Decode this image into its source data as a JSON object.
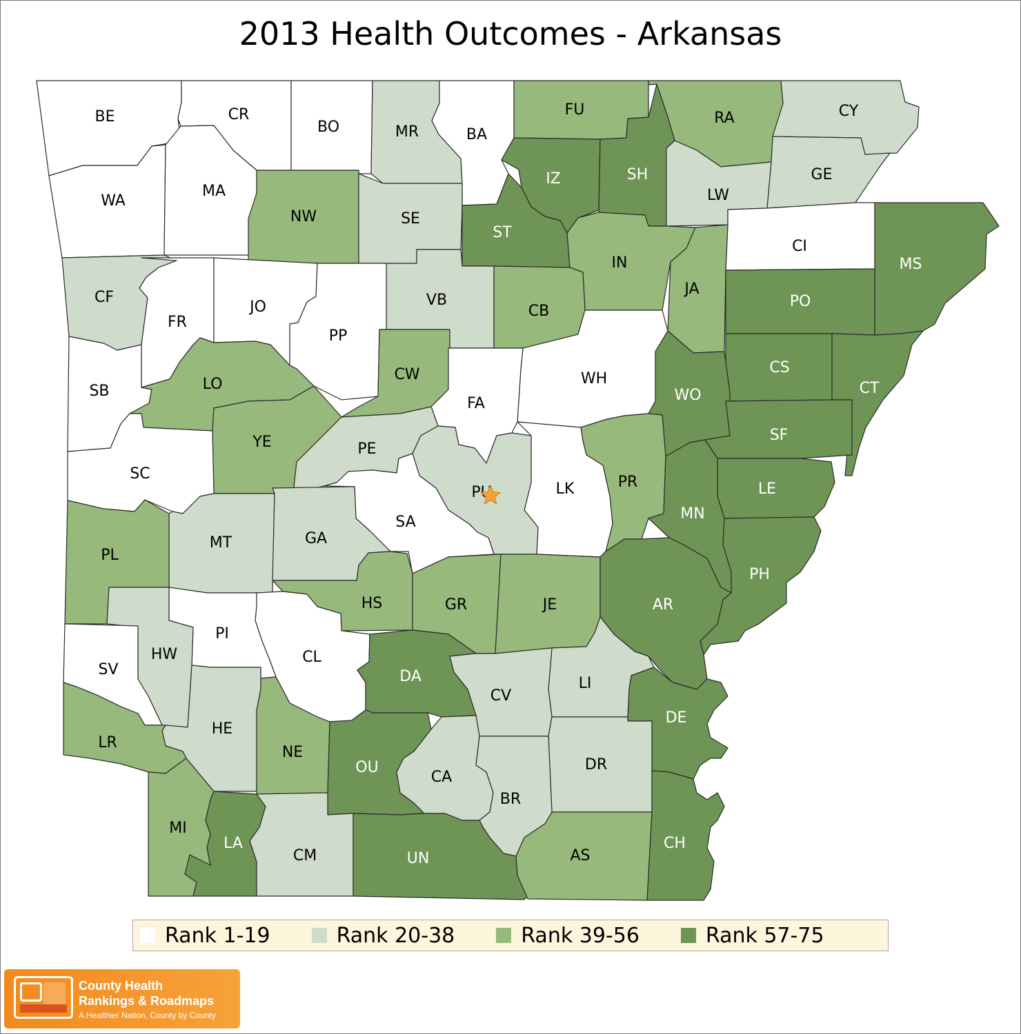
{
  "title": "2013 Health Outcomes - Arkansas",
  "colors": {
    "rank_1_19": "#ffffff",
    "rank_20_38": "#d0dccb",
    "rank_39_56": "#97b97b",
    "rank_57_75": "#6e9555",
    "star": "#f5a23a"
  },
  "legend": [
    {
      "label": "Rank 1-19",
      "color": "#ffffff"
    },
    {
      "label": "Rank 20-38",
      "color": "#d0dccb"
    },
    {
      "label": "Rank 39-56",
      "color": "#97b97b"
    },
    {
      "label": "Rank 57-75",
      "color": "#6e9555"
    }
  ],
  "counties": [
    {
      "code": "BE",
      "tier": 1
    },
    {
      "code": "CR",
      "tier": 1
    },
    {
      "code": "BO",
      "tier": 1
    },
    {
      "code": "MR",
      "tier": 2
    },
    {
      "code": "BA",
      "tier": 1
    },
    {
      "code": "FU",
      "tier": 3
    },
    {
      "code": "RA",
      "tier": 3
    },
    {
      "code": "CY",
      "tier": 2
    },
    {
      "code": "WA",
      "tier": 1
    },
    {
      "code": "MA",
      "tier": 1
    },
    {
      "code": "NW",
      "tier": 3
    },
    {
      "code": "SE",
      "tier": 2
    },
    {
      "code": "IZ",
      "tier": 4
    },
    {
      "code": "SH",
      "tier": 4
    },
    {
      "code": "LW",
      "tier": 2
    },
    {
      "code": "GE",
      "tier": 2
    },
    {
      "code": "ST",
      "tier": 4
    },
    {
      "code": "CI",
      "tier": 1
    },
    {
      "code": "MS",
      "tier": 4
    },
    {
      "code": "IN",
      "tier": 3
    },
    {
      "code": "CF",
      "tier": 2
    },
    {
      "code": "FR",
      "tier": 1
    },
    {
      "code": "JO",
      "tier": 1
    },
    {
      "code": "VB",
      "tier": 2
    },
    {
      "code": "JA",
      "tier": 3
    },
    {
      "code": "PO",
      "tier": 4
    },
    {
      "code": "CB",
      "tier": 3
    },
    {
      "code": "PP",
      "tier": 1
    },
    {
      "code": "SB",
      "tier": 1
    },
    {
      "code": "LO",
      "tier": 3
    },
    {
      "code": "CW",
      "tier": 3
    },
    {
      "code": "WH",
      "tier": 1
    },
    {
      "code": "CS",
      "tier": 4
    },
    {
      "code": "CT",
      "tier": 4
    },
    {
      "code": "FA",
      "tier": 1
    },
    {
      "code": "WO",
      "tier": 4
    },
    {
      "code": "YE",
      "tier": 3
    },
    {
      "code": "SF",
      "tier": 4
    },
    {
      "code": "PE",
      "tier": 2
    },
    {
      "code": "SC",
      "tier": 1
    },
    {
      "code": "PR",
      "tier": 3
    },
    {
      "code": "LK",
      "tier": 1
    },
    {
      "code": "PU",
      "tier": 2
    },
    {
      "code": "LE",
      "tier": 4
    },
    {
      "code": "MN",
      "tier": 4
    },
    {
      "code": "SA",
      "tier": 1
    },
    {
      "code": "MT",
      "tier": 2
    },
    {
      "code": "GA",
      "tier": 2
    },
    {
      "code": "PL",
      "tier": 3
    },
    {
      "code": "PH",
      "tier": 4
    },
    {
      "code": "HS",
      "tier": 3
    },
    {
      "code": "GR",
      "tier": 3
    },
    {
      "code": "JE",
      "tier": 3
    },
    {
      "code": "AR",
      "tier": 4
    },
    {
      "code": "PI",
      "tier": 1
    },
    {
      "code": "HW",
      "tier": 2
    },
    {
      "code": "SV",
      "tier": 1
    },
    {
      "code": "CL",
      "tier": 1
    },
    {
      "code": "DA",
      "tier": 4
    },
    {
      "code": "LI",
      "tier": 2
    },
    {
      "code": "CV",
      "tier": 2
    },
    {
      "code": "DE",
      "tier": 4
    },
    {
      "code": "HE",
      "tier": 2
    },
    {
      "code": "LR",
      "tier": 3
    },
    {
      "code": "NE",
      "tier": 3
    },
    {
      "code": "OU",
      "tier": 4
    },
    {
      "code": "CA",
      "tier": 2
    },
    {
      "code": "DR",
      "tier": 2
    },
    {
      "code": "BR",
      "tier": 2
    },
    {
      "code": "MI",
      "tier": 3
    },
    {
      "code": "LA",
      "tier": 4
    },
    {
      "code": "CM",
      "tier": 2
    },
    {
      "code": "UN",
      "tier": 4
    },
    {
      "code": "AS",
      "tier": 3
    },
    {
      "code": "CH",
      "tier": 4
    }
  ],
  "capital_icon": "star-icon",
  "logo": {
    "line1": "County Health",
    "line2": "Rankings & Roadmaps",
    "tagline": "A Healthier Nation, County by County"
  }
}
